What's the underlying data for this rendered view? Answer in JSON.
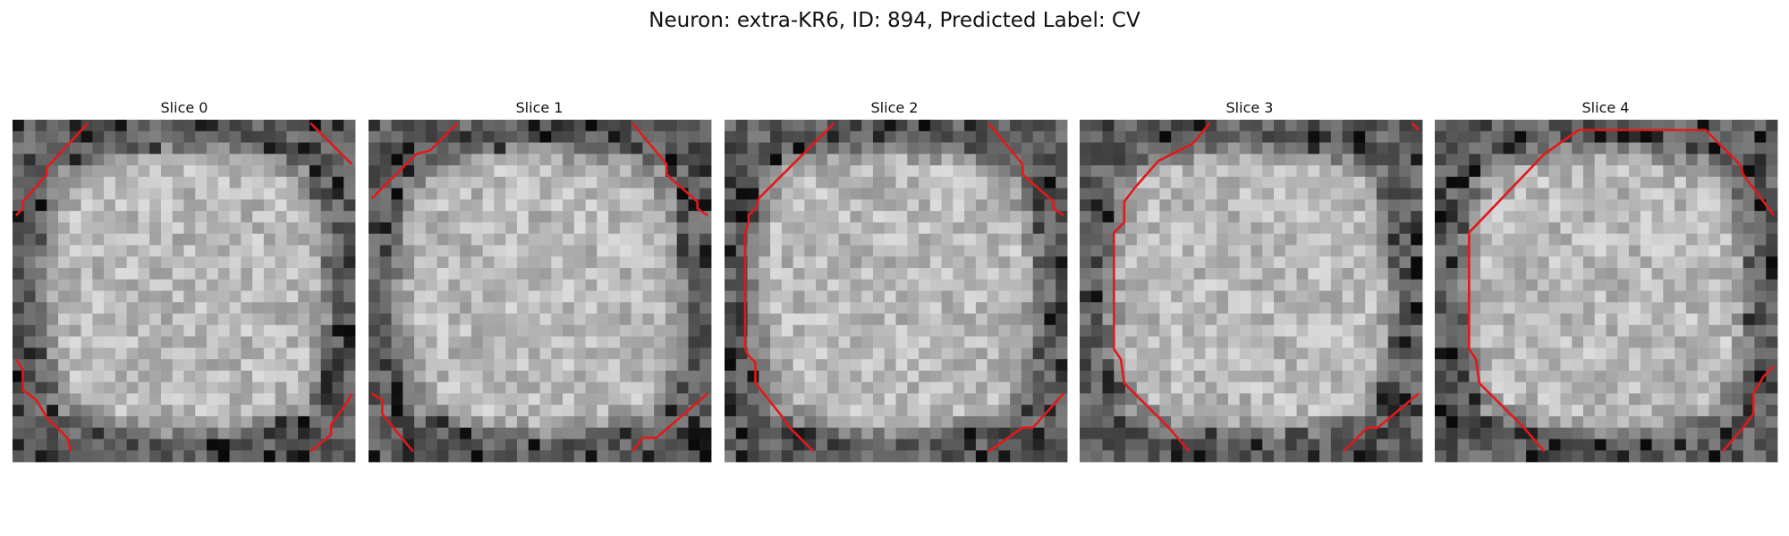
{
  "figure": {
    "title": "Neuron: extra-KR6, ID: 894, Predicted Label: CV"
  },
  "panels": [
    {
      "title": "Slice 0",
      "contour_color": "#e01a1a"
    },
    {
      "title": "Slice 1",
      "contour_color": "#e01a1a"
    },
    {
      "title": "Slice 2",
      "contour_color": "#e01a1a"
    },
    {
      "title": "Slice 3",
      "contour_color": "#e01a1a"
    },
    {
      "title": "Slice 4",
      "contour_color": "#e01a1a"
    }
  ]
}
